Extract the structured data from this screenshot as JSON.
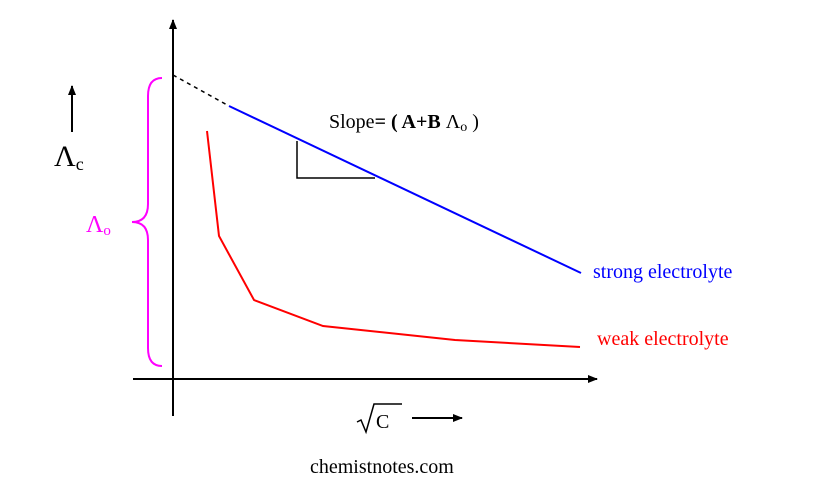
{
  "diagram": {
    "y_axis_symbol": "Λ",
    "y_axis_subscript": "c",
    "intercept_symbol": "Λ",
    "intercept_subscript": "o",
    "slope_prefix": "Slope",
    "slope_bold": "= ( A+B ",
    "slope_symbol": "Λ",
    "slope_subscript": "o",
    "slope_close": " )",
    "x_axis_label": "C",
    "strong_label": "strong electrolyte",
    "weak_label": "weak electrolyte",
    "credit": "chemistnotes.com"
  },
  "colors": {
    "axis": "#000000",
    "strong": "#0000ff",
    "weak": "#ff0000",
    "brace": "#ff00ff"
  }
}
